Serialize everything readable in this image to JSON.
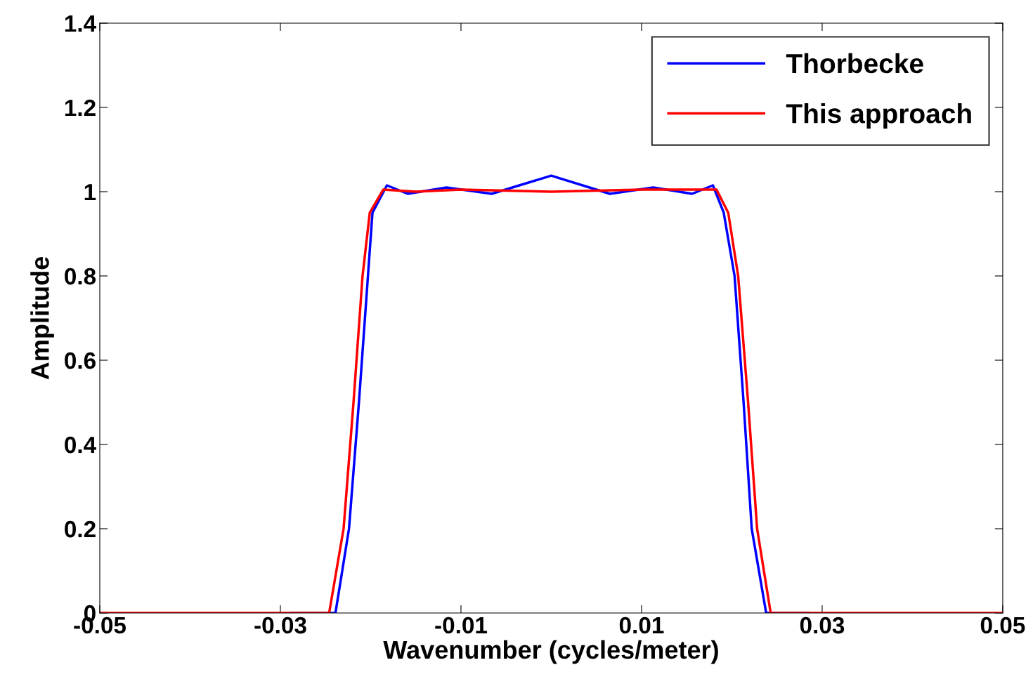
{
  "chart_data": {
    "type": "line",
    "xlabel": "Wavenumber (cycles/meter)",
    "ylabel": "Amplitude",
    "xlim": [
      -0.05,
      0.05
    ],
    "xticks": [
      -0.05,
      -0.03,
      -0.01,
      0.01,
      0.03,
      0.05
    ],
    "ylim": [
      0,
      1.4
    ],
    "yticks": [
      0,
      0.2,
      0.4,
      0.6,
      0.8,
      1,
      1.2,
      1.4
    ],
    "grid": false,
    "legend": "top right",
    "line_style": "solid",
    "marker": "none",
    "series": [
      {
        "name": "Thorbecke",
        "color": "#0000ff",
        "x": [
          -0.0288,
          -0.0239,
          -0.0224,
          -0.0213,
          -0.0203,
          -0.0198,
          -0.0182,
          -0.0159,
          -0.0116,
          -0.0066,
          0,
          0.0065,
          0.0113,
          0.0156,
          0.0179,
          0.0191,
          0.0203,
          0.0213,
          0.0222,
          0.0238,
          0.0284
        ],
        "values": [
          0,
          0,
          0.2,
          0.5,
          0.8,
          0.95,
          1.015,
          0.995,
          1.01,
          0.995,
          1.038,
          0.995,
          1.01,
          0.995,
          1.015,
          0.95,
          0.8,
          0.5,
          0.2,
          0,
          0
        ]
      },
      {
        "name": "This approach",
        "color": "#ff0000",
        "x": [
          -0.05,
          -0.0246,
          -0.023,
          -0.0219,
          -0.0209,
          -0.0201,
          -0.0186,
          -0.015,
          -0.01,
          0,
          0.01,
          0.0183,
          0.0196,
          0.0207,
          0.0218,
          0.0228,
          0.0243,
          0.05
        ],
        "values": [
          0,
          0,
          0.2,
          0.5,
          0.8,
          0.95,
          1.005,
          1.0,
          1.005,
          1.0,
          1.005,
          1.005,
          0.95,
          0.8,
          0.5,
          0.2,
          0,
          0
        ]
      }
    ]
  }
}
